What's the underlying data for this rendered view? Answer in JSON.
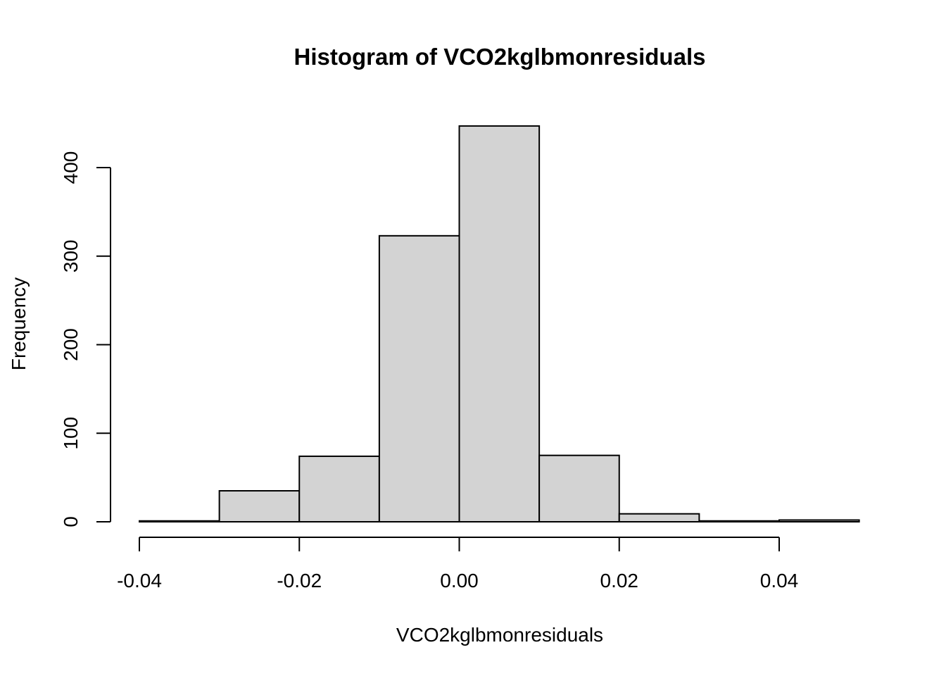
{
  "chart_data": {
    "type": "bar",
    "title": "Histogram of VCO2kglbmonresiduals",
    "xlabel": "VCO2kglbmonresiduals",
    "ylabel": "Frequency",
    "xlim": [
      -0.04,
      0.05
    ],
    "ylim": [
      0,
      447
    ],
    "x_ticks": [
      -0.04,
      -0.02,
      0.0,
      0.02,
      0.04
    ],
    "x_tick_labels": [
      "-0.04",
      "-0.02",
      "0.00",
      "0.02",
      "0.04"
    ],
    "y_ticks": [
      0,
      100,
      200,
      300,
      400
    ],
    "y_tick_labels": [
      "0",
      "100",
      "200",
      "300",
      "400"
    ],
    "bins": [
      {
        "x0": -0.04,
        "x1": -0.03,
        "count": 1
      },
      {
        "x0": -0.03,
        "x1": -0.02,
        "count": 35
      },
      {
        "x0": -0.02,
        "x1": -0.01,
        "count": 74
      },
      {
        "x0": -0.01,
        "x1": 0.0,
        "count": 323
      },
      {
        "x0": 0.0,
        "x1": 0.01,
        "count": 447
      },
      {
        "x0": 0.01,
        "x1": 0.02,
        "count": 75
      },
      {
        "x0": 0.02,
        "x1": 0.03,
        "count": 9
      },
      {
        "x0": 0.03,
        "x1": 0.04,
        "count": 1
      },
      {
        "x0": 0.04,
        "x1": 0.05,
        "count": 2
      }
    ],
    "bar_color": "#d3d3d3",
    "grid": false
  }
}
